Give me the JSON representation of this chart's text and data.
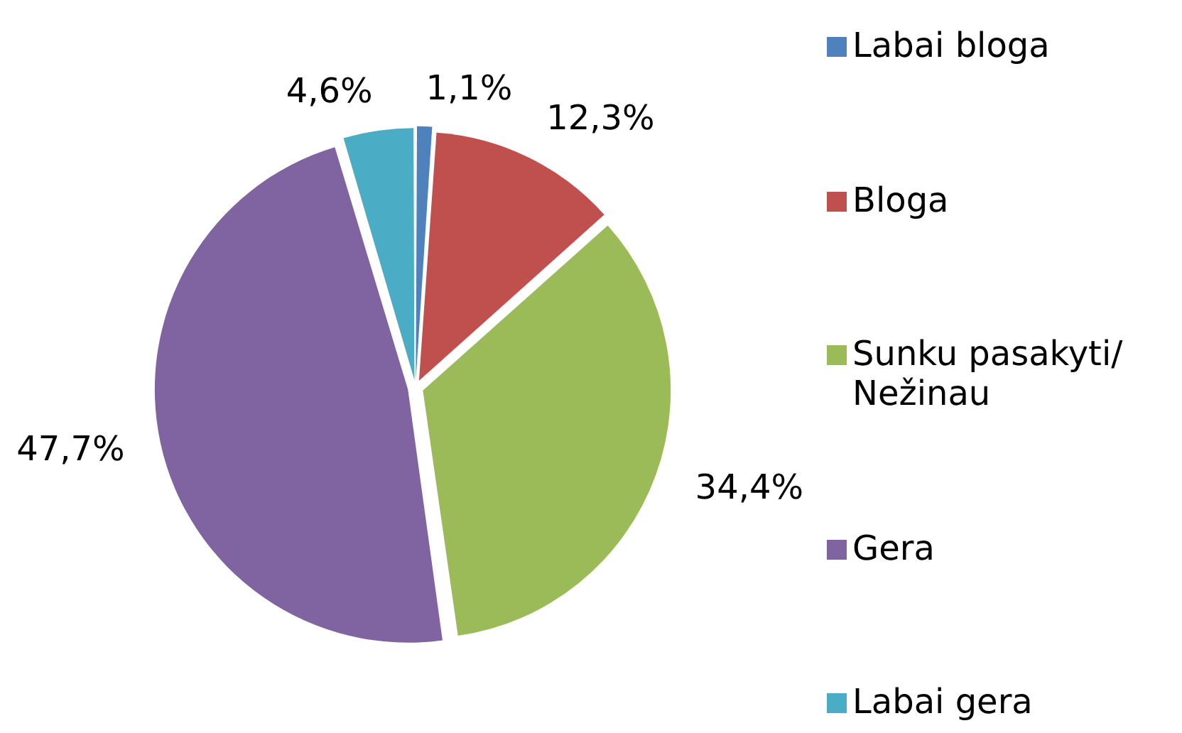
{
  "chart_data": {
    "type": "pie",
    "categories": [
      "Labai bloga",
      "Bloga",
      "Sunku pasakyti/ Nežinau",
      "Gera",
      "Labai gera"
    ],
    "values": [
      1.1,
      12.3,
      34.4,
      47.7,
      4.6
    ],
    "colors": [
      "#4f81bd",
      "#c0504d",
      "#9bbb59",
      "#8064a2",
      "#4bacc6"
    ],
    "value_labels": [
      "1,1%",
      "12,3%",
      "34,4%",
      "47,7%",
      "4,6%"
    ],
    "legend": "right"
  }
}
